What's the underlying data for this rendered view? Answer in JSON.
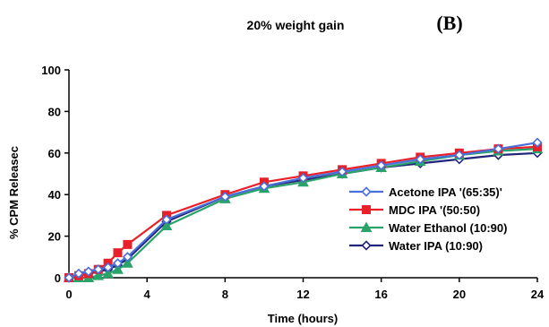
{
  "chart_data": {
    "type": "line",
    "title": "20% weight gain",
    "panel_label": "(B)",
    "xlabel": "Time (hours)",
    "ylabel": "% CPM Releasec",
    "xlim": [
      0,
      24
    ],
    "ylim": [
      0,
      100
    ],
    "xticks": [
      "0",
      "4",
      "8",
      "12",
      "16",
      "20",
      "24"
    ],
    "yticks": [
      "0",
      "20",
      "40",
      "60",
      "80",
      "100"
    ],
    "legend_position": "right",
    "series": [
      {
        "name": "Acetone IPA '(65:35)'",
        "color": "#4a6fd8",
        "marker": "diamond-open",
        "x": [
          0,
          0.5,
          1,
          1.5,
          2,
          2.5,
          3,
          5,
          8,
          10,
          12,
          14,
          16,
          18,
          20,
          22,
          24
        ],
        "y": [
          0,
          2,
          3,
          4,
          5,
          7,
          10,
          28,
          39,
          44,
          48,
          51,
          54,
          57,
          59,
          62,
          65
        ]
      },
      {
        "name": "MDC IPA '(50:50)",
        "color": "#e8202a",
        "marker": "square",
        "x": [
          0,
          0.5,
          1,
          1.5,
          2,
          2.5,
          3,
          5,
          8,
          10,
          12,
          14,
          16,
          18,
          20,
          22,
          24
        ],
        "y": [
          0,
          1,
          2,
          4,
          7,
          12,
          16,
          30,
          40,
          46,
          49,
          52,
          55,
          58,
          60,
          62,
          63
        ]
      },
      {
        "name": "Water  Ethanol (10:90)",
        "color": "#2aa36a",
        "marker": "triangle",
        "x": [
          0,
          0.5,
          1,
          1.5,
          2,
          2.5,
          3,
          5,
          8,
          10,
          12,
          14,
          16,
          18,
          20,
          22,
          24
        ],
        "y": [
          0,
          0,
          0,
          1,
          2,
          4,
          7,
          25,
          38,
          43,
          46,
          50,
          53,
          56,
          59,
          61,
          62
        ]
      },
      {
        "name": "Water  IPA (10:90)",
        "color": "#22237a",
        "marker": "diamond-open",
        "x": [
          0,
          0.5,
          1,
          1.5,
          2,
          2.5,
          3,
          5,
          8,
          10,
          12,
          14,
          16,
          18,
          20,
          22,
          24
        ],
        "y": [
          0,
          1,
          2,
          3,
          4,
          6,
          9,
          27,
          39,
          44,
          47,
          50,
          53,
          55,
          57,
          59,
          60
        ]
      }
    ]
  }
}
